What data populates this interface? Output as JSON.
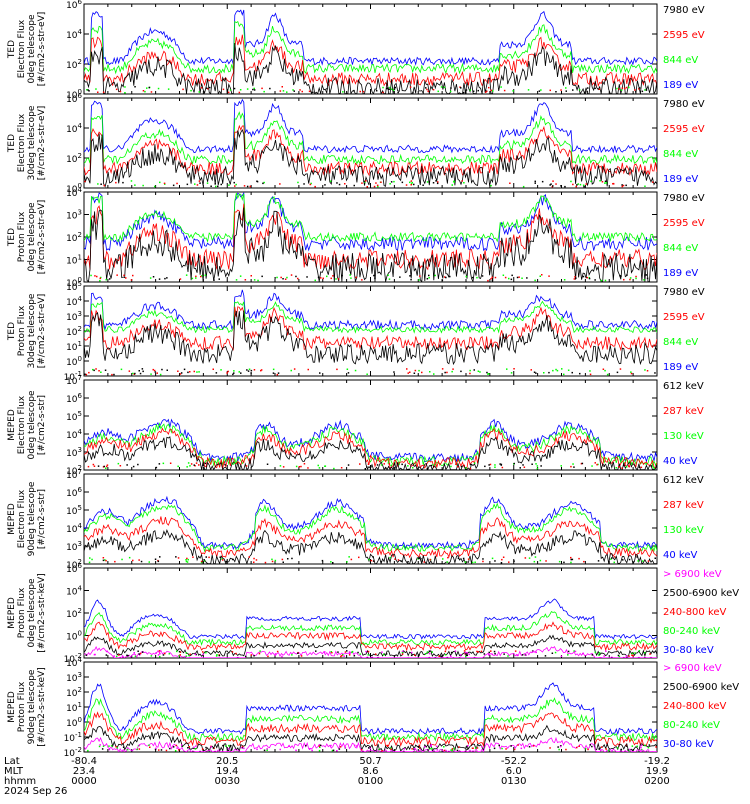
{
  "colors": {
    "blue": "#0000ff",
    "red": "#ff0000",
    "green": "#00ff00",
    "black": "#000000",
    "magenta": "#ff00ff"
  },
  "chart_data": [
    {
      "type": "line",
      "ylabel_lines": [
        "TED",
        "Electron Flux",
        "0deg telescope",
        "[#/cm2-s-str-eV]"
      ],
      "ytick_labels": [
        "10^6",
        "10^4",
        "10^2",
        "10^0"
      ],
      "ylim_log10": [
        0,
        6
      ],
      "legend": [
        {
          "label": "7980 eV",
          "color": "#000000"
        },
        {
          "label": "2595 eV",
          "color": "#ff0000"
        },
        {
          "label": "844 eV",
          "color": "#00ff00"
        },
        {
          "label": "189 eV",
          "color": "#0000ff"
        }
      ]
    },
    {
      "type": "line",
      "ylabel_lines": [
        "TED",
        "Electron Flux",
        "30deg telescope",
        "[#/cm2-s-str-eV]"
      ],
      "ytick_labels": [
        "10^6",
        "10^4",
        "10^2",
        "10^0"
      ],
      "ylim_log10": [
        0,
        6
      ],
      "legend": [
        {
          "label": "7980 eV",
          "color": "#000000"
        },
        {
          "label": "2595 eV",
          "color": "#ff0000"
        },
        {
          "label": "844 eV",
          "color": "#00ff00"
        },
        {
          "label": "189 eV",
          "color": "#0000ff"
        }
      ]
    },
    {
      "type": "line",
      "ylabel_lines": [
        "TED",
        "Proton Flux",
        "0deg telescope",
        "[#/cm2-s-str-eV]"
      ],
      "ytick_labels": [
        "10^4",
        "10^3",
        "10^2",
        "10^1",
        "10^0"
      ],
      "ylim_log10": [
        0,
        4
      ],
      "legend": [
        {
          "label": "7980 eV",
          "color": "#000000"
        },
        {
          "label": "2595 eV",
          "color": "#ff0000"
        },
        {
          "label": "844 eV",
          "color": "#00ff00"
        },
        {
          "label": "189 eV",
          "color": "#0000ff"
        }
      ]
    },
    {
      "type": "line",
      "ylabel_lines": [
        "TED",
        "Proton Flux",
        "30deg telescope",
        "[#/cm2-s-str-eV]"
      ],
      "ytick_labels": [
        "10^5",
        "10^4",
        "10^3",
        "10^2",
        "10^1",
        "10^0",
        "10^-1"
      ],
      "ylim_log10": [
        -1,
        5
      ],
      "legend": [
        {
          "label": "7980 eV",
          "color": "#000000"
        },
        {
          "label": "2595 eV",
          "color": "#ff0000"
        },
        {
          "label": "844 eV",
          "color": "#00ff00"
        },
        {
          "label": "189 eV",
          "color": "#0000ff"
        }
      ]
    },
    {
      "type": "line",
      "ylabel_lines": [
        "MEPED",
        "Electron Flux",
        "0deg telescope",
        "[#/cm2-s-str]"
      ],
      "ytick_labels": [
        "10^7",
        "10^6",
        "10^5",
        "10^4",
        "10^3",
        "10^2"
      ],
      "ylim_log10": [
        2,
        7
      ],
      "legend": [
        {
          "label": "612 keV",
          "color": "#000000"
        },
        {
          "label": "287 keV",
          "color": "#ff0000"
        },
        {
          "label": "130 keV",
          "color": "#00ff00"
        },
        {
          "label": "40 keV",
          "color": "#0000ff"
        }
      ]
    },
    {
      "type": "line",
      "ylabel_lines": [
        "MEPED",
        "Electron Flux",
        "90deg telescope",
        "[#/cm2-s-str]"
      ],
      "ytick_labels": [
        "10^7",
        "10^6",
        "10^5",
        "10^4",
        "10^3",
        "10^2"
      ],
      "ylim_log10": [
        2,
        7
      ],
      "legend": [
        {
          "label": "612 keV",
          "color": "#000000"
        },
        {
          "label": "287 keV",
          "color": "#ff0000"
        },
        {
          "label": "130 keV",
          "color": "#00ff00"
        },
        {
          "label": "40 keV",
          "color": "#0000ff"
        }
      ]
    },
    {
      "type": "line",
      "ylabel_lines": [
        "MEPED",
        "Proton Flux",
        "0deg telescope",
        "[#/cm2-s-str-keV]"
      ],
      "ytick_labels": [
        "10^6",
        "10^4",
        "10^2",
        "10^0",
        "10^-2"
      ],
      "ylim_log10": [
        -2,
        6
      ],
      "legend": [
        {
          "label": "> 6900 keV",
          "color": "#ff00ff"
        },
        {
          "label": "2500-6900 keV",
          "color": "#000000"
        },
        {
          "label": "240-800 keV",
          "color": "#ff0000"
        },
        {
          "label": "80-240 keV",
          "color": "#00ff00"
        },
        {
          "label": "30-80 keV",
          "color": "#0000ff"
        }
      ]
    },
    {
      "type": "line",
      "ylabel_lines": [
        "MEPED",
        "Proton Flux",
        "90deg telescope",
        "[#/cm2-s-str-keV]"
      ],
      "ytick_labels": [
        "10^4",
        "10^3",
        "10^2",
        "10^1",
        "10^0",
        "10^-1",
        "10^-2"
      ],
      "ylim_log10": [
        -2,
        4
      ],
      "legend": [
        {
          "label": "> 6900 keV",
          "color": "#ff00ff"
        },
        {
          "label": "2500-6900 keV",
          "color": "#000000"
        },
        {
          "label": "240-800 keV",
          "color": "#ff0000"
        },
        {
          "label": "80-240 keV",
          "color": "#00ff00"
        },
        {
          "label": "30-80 keV",
          "color": "#0000ff"
        }
      ]
    }
  ],
  "x_axis": {
    "row_labels": [
      "Lat",
      "MLT",
      "hhmm",
      "2024 Sep 26"
    ],
    "ticks": [
      {
        "minutes": 0,
        "lat": "-80.4",
        "mlt": "23.4",
        "hhmm": "0000"
      },
      {
        "minutes": 30,
        "lat": "20.5",
        "mlt": "19.4",
        "hhmm": "0030"
      },
      {
        "minutes": 60,
        "lat": "50.7",
        "mlt": "8.6",
        "hhmm": "0100"
      },
      {
        "minutes": 90,
        "lat": "-52.2",
        "mlt": "6.0",
        "hhmm": "0130"
      },
      {
        "minutes": 120,
        "lat": "-19.2",
        "mlt": "19.9",
        "hhmm": "0200"
      }
    ]
  }
}
